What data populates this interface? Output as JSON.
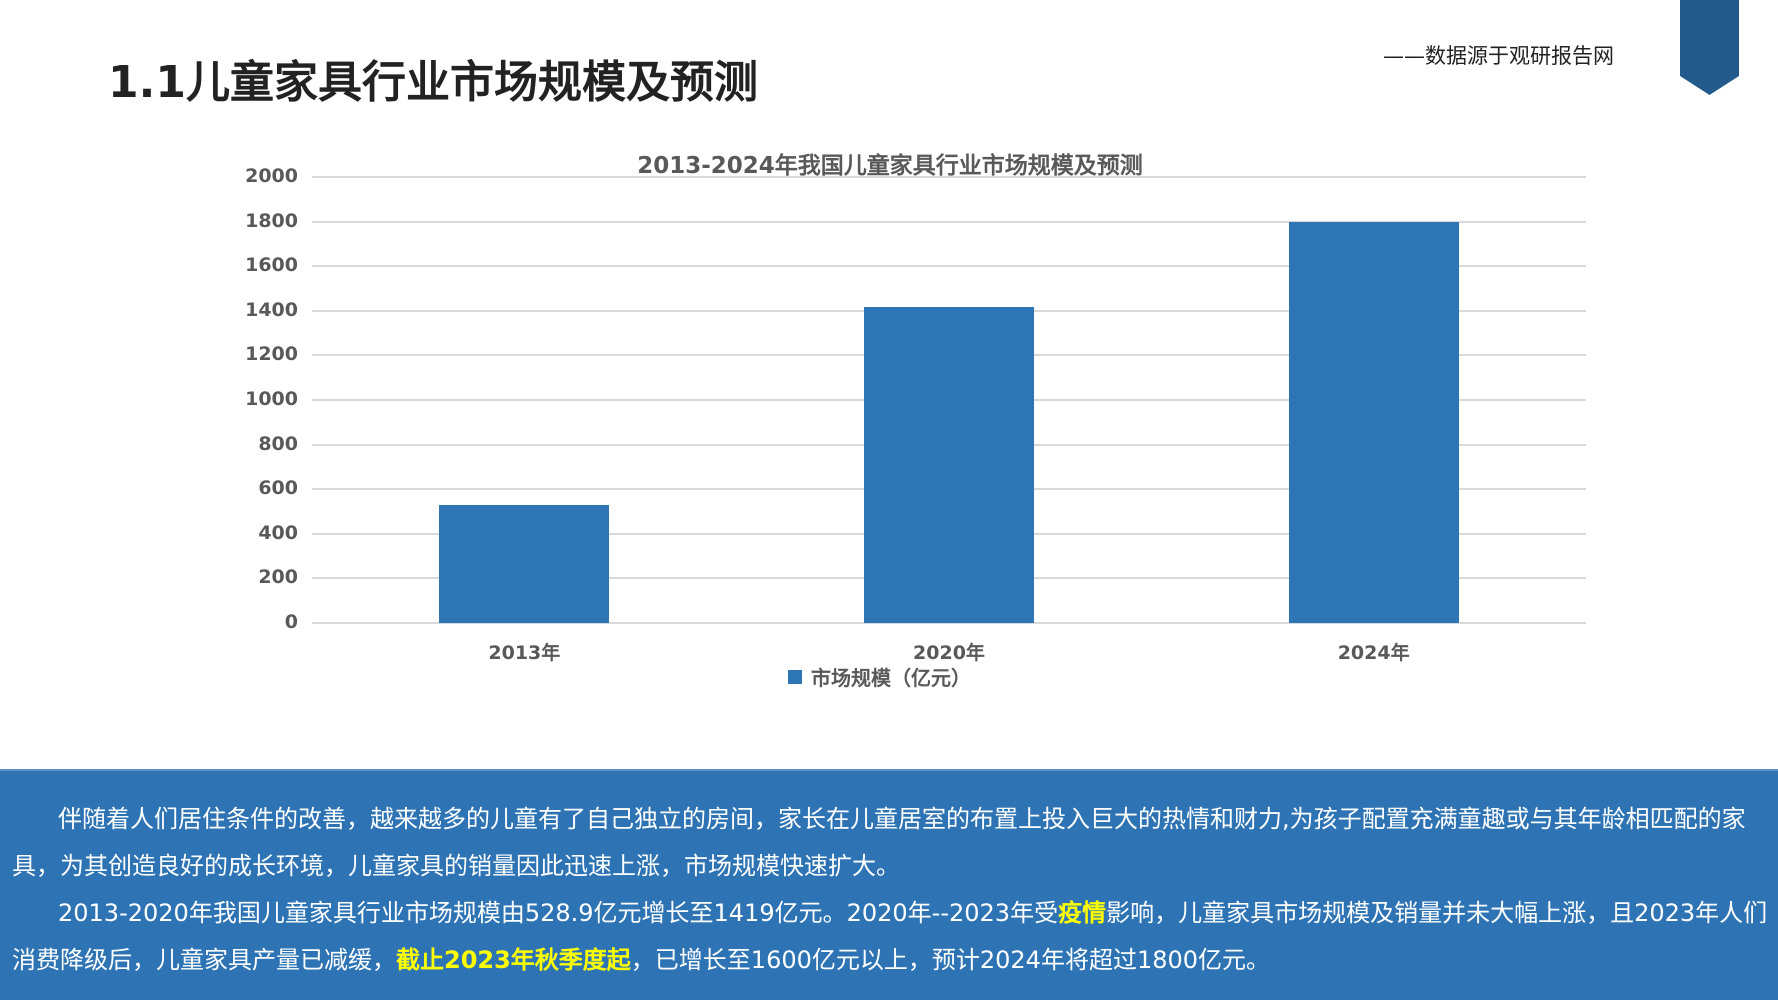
{
  "page": {
    "title": "1.1儿童家具行业市场规模及预测",
    "source_note": "——数据源于观研报告网",
    "ribbon_color": "#235A8C",
    "panel_color": "#2E74B5",
    "highlight_color": "#FFFF00"
  },
  "chart_data": {
    "type": "bar",
    "title": "2013-2024年我国儿童家具行业市场规模及预测",
    "categories": [
      "2013年",
      "2020年",
      "2024年"
    ],
    "series": [
      {
        "name": "市场规模（亿元）",
        "values": [
          528.9,
          1419,
          1800
        ],
        "color": "#2E75B6"
      }
    ],
    "xlabel": "",
    "ylabel": "",
    "ylim": [
      0,
      2000
    ],
    "yticks": [
      0,
      200,
      400,
      600,
      800,
      1000,
      1200,
      1400,
      1600,
      1800,
      2000
    ],
    "grid": true,
    "legend_position": "bottom"
  },
  "panel": {
    "paragraphs": [
      {
        "segments": [
          {
            "text": "伴随着人们居住条件的改善，越来越多的儿童有了自己独立的房间，家长在儿童居室的布置上投入巨大的热情和财力,为孩子配置充满童趣或与其年龄相匹配的家具，为其创造良好的成长环境，儿童家具的销量因此迅速上涨，市场规模快速扩大。",
            "highlight": false
          }
        ]
      },
      {
        "segments": [
          {
            "text": "2013-2020年我国儿童家具行业市场规模由528.9亿元增长至1419亿元。2020年--2023年受",
            "highlight": false
          },
          {
            "text": "疫情",
            "highlight": true
          },
          {
            "text": "影响，儿童家具市场规模及销量并未大幅上涨，且2023年人们消费降级后，儿童家具产量已减缓，",
            "highlight": false
          },
          {
            "text": "截止2023年秋季度起",
            "highlight": true
          },
          {
            "text": "，已增长至1600亿元以上，预计2024年将超过1800亿元。",
            "highlight": false
          }
        ]
      }
    ]
  }
}
